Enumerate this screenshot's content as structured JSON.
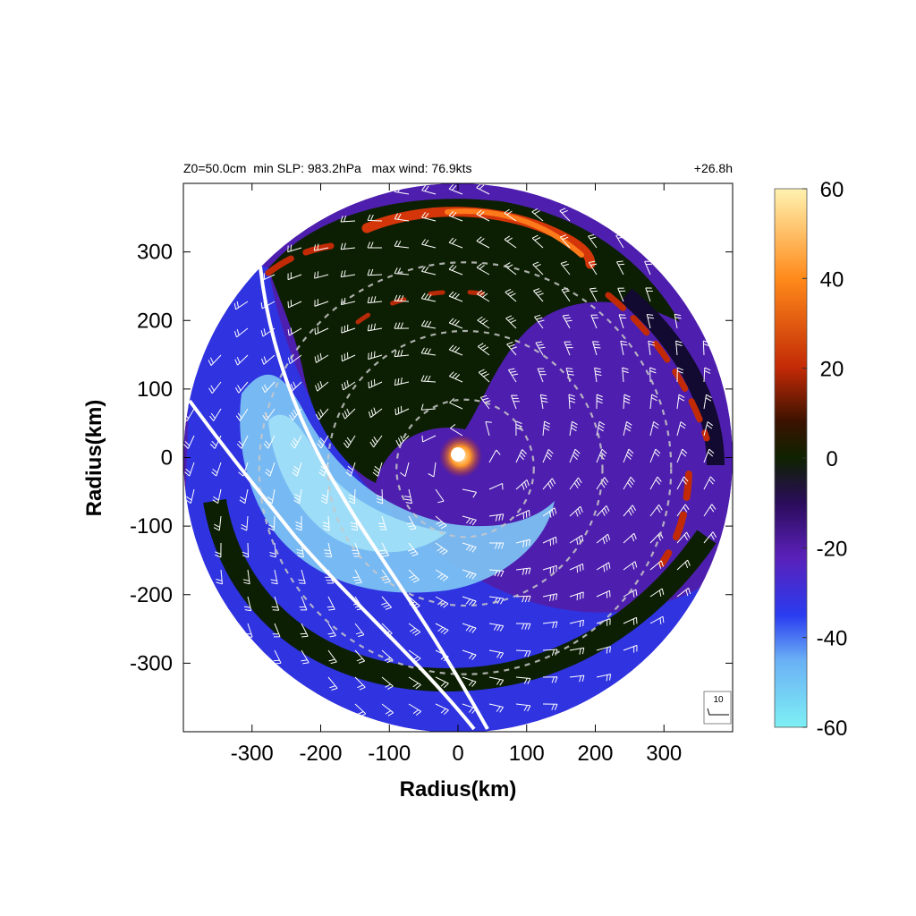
{
  "header": {
    "left_text": "Z0=50.0cm  min SLP: 983.2hPa   max wind: 76.9kts",
    "right_text": "+26.8h"
  },
  "chart_data": {
    "type": "heatmap",
    "xlabel": "Radius(km)",
    "ylabel": "Radius(km)",
    "xlim": [
      -400,
      400
    ],
    "ylim": [
      -400,
      400
    ],
    "x_ticks": [
      -300,
      -200,
      -100,
      0,
      100,
      200,
      300
    ],
    "y_ticks": [
      300,
      200,
      100,
      0,
      -100,
      -200,
      -300
    ],
    "domain_radius_km": 400,
    "colorbar": {
      "min": -60,
      "max": 60,
      "ticks": [
        60,
        40,
        20,
        0,
        -20,
        -40,
        -60
      ],
      "stops": [
        {
          "value": -60,
          "color": "#7ef0f5"
        },
        {
          "value": -45,
          "color": "#6ab0f5"
        },
        {
          "value": -35,
          "color": "#2a3cf0"
        },
        {
          "value": -22,
          "color": "#5a20b8"
        },
        {
          "value": -10,
          "color": "#2a0c5a"
        },
        {
          "value": 0,
          "color": "#0e2200"
        },
        {
          "value": 8,
          "color": "#3a1200"
        },
        {
          "value": 20,
          "color": "#c22a06"
        },
        {
          "value": 40,
          "color": "#ff8a1a"
        },
        {
          "value": 60,
          "color": "#fff2b0"
        }
      ]
    },
    "range_rings_km": [
      100,
      200,
      300
    ],
    "wind_barb_legend": "10",
    "grid": false
  }
}
